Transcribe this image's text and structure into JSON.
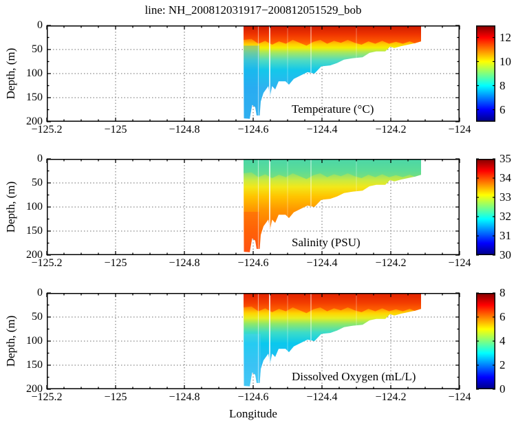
{
  "title": "line: NH_200812031917−200812051529_bob",
  "axes": {
    "xlabel": "Longitude",
    "ylabel": "Depth, (m)",
    "xlim": [
      -125.2,
      -124.0
    ],
    "ylim": [
      0,
      200
    ],
    "xtick_values": [
      -125.2,
      -125,
      -124.8,
      -124.6,
      -124.4,
      -124.2,
      -124
    ],
    "xtick_labels": [
      "−125.2",
      "−125",
      "−124.8",
      "−124.6",
      "−124.4",
      "−124.2",
      "−124"
    ],
    "ytick_values": [
      0,
      50,
      100,
      150,
      200
    ],
    "ytick_labels": [
      "0",
      "50",
      "100",
      "150",
      "200"
    ],
    "x_minor_step": 0.05,
    "y_minor_step": 25,
    "grid": "dotted"
  },
  "colormap": {
    "name": "jet",
    "stops": [
      [
        0,
        "#000083"
      ],
      [
        0.125,
        "#0000ff"
      ],
      [
        0.375,
        "#00ffff"
      ],
      [
        0.625,
        "#ffff00"
      ],
      [
        0.875,
        "#ff0000"
      ],
      [
        1,
        "#800000"
      ]
    ]
  },
  "section": {
    "lon_min": -124.628,
    "lon_max": -124.112,
    "max_depth_m": 196,
    "seafloor": [
      [
        -124.627,
        193
      ],
      [
        -124.61,
        194
      ],
      [
        -124.603,
        165
      ],
      [
        -124.594,
        170
      ],
      [
        -124.59,
        187
      ],
      [
        -124.581,
        187
      ],
      [
        -124.578,
        158
      ],
      [
        -124.57,
        140
      ],
      [
        -124.556,
        126
      ],
      [
        -124.551,
        147
      ],
      [
        -124.545,
        126
      ],
      [
        -124.536,
        133
      ],
      [
        -124.526,
        116
      ],
      [
        -124.506,
        116
      ],
      [
        -124.496,
        123
      ],
      [
        -124.482,
        111
      ],
      [
        -124.462,
        104
      ],
      [
        -124.442,
        97
      ],
      [
        -124.422,
        100
      ],
      [
        -124.402,
        85
      ],
      [
        -124.376,
        83
      ],
      [
        -124.356,
        78
      ],
      [
        -124.336,
        71
      ],
      [
        -124.31,
        68
      ],
      [
        -124.282,
        66
      ],
      [
        -124.262,
        57
      ],
      [
        -124.242,
        54
      ],
      [
        -124.216,
        54
      ],
      [
        -124.202,
        44
      ],
      [
        -124.19,
        47
      ],
      [
        -124.17,
        43
      ],
      [
        -124.15,
        40
      ],
      [
        -124.13,
        37
      ],
      [
        -124.112,
        33
      ]
    ],
    "mixed_layer": [
      [
        -124.628,
        30
      ],
      [
        -124.605,
        28
      ],
      [
        -124.585,
        38
      ],
      [
        -124.565,
        32
      ],
      [
        -124.545,
        40
      ],
      [
        -124.525,
        33
      ],
      [
        -124.505,
        38
      ],
      [
        -124.485,
        30
      ],
      [
        -124.465,
        36
      ],
      [
        -124.445,
        42
      ],
      [
        -124.425,
        34
      ],
      [
        -124.405,
        30
      ],
      [
        -124.385,
        38
      ],
      [
        -124.365,
        32
      ],
      [
        -124.345,
        36
      ],
      [
        -124.325,
        30
      ],
      [
        -124.305,
        36
      ],
      [
        -124.285,
        40
      ],
      [
        -124.265,
        33
      ],
      [
        -124.245,
        38
      ],
      [
        -124.225,
        32
      ],
      [
        -124.205,
        38
      ],
      [
        -124.185,
        34
      ],
      [
        -124.165,
        38
      ],
      [
        -124.145,
        33
      ],
      [
        -124.128,
        38
      ],
      [
        -124.112,
        40
      ]
    ],
    "streaks": [
      {
        "lon": -124.585,
        "width": 1.2,
        "opacity": 0.5
      },
      {
        "lon": -124.552,
        "width": 1.8,
        "opacity": 0.85
      },
      {
        "lon": -124.5,
        "width": 1.0,
        "opacity": 0.35
      },
      {
        "lon": -124.432,
        "width": 1.4,
        "opacity": 0.55
      },
      {
        "lon": -124.3,
        "width": 1.0,
        "opacity": 0.35
      }
    ]
  },
  "chart_data": [
    {
      "type": "heatmap",
      "panel": "temperature",
      "label": "Temperature (°C)",
      "surface_value_c": 12,
      "deep_value_c": 6.5,
      "colorbar": {
        "min": 5,
        "max": 13,
        "tick_values": [
          12,
          10,
          8,
          6
        ],
        "tick_labels": [
          "12",
          "10",
          "8",
          "6"
        ]
      },
      "surface_gradient": [
        [
          0,
          "#cc1a00"
        ],
        [
          18,
          "#ee3300"
        ],
        [
          34,
          "#ff5a00"
        ],
        [
          46,
          "#ff9100"
        ]
      ],
      "depth_gradient": [
        [
          0,
          "#ee3300"
        ],
        [
          26,
          "#ff6a00"
        ],
        [
          38,
          "#ffc800"
        ],
        [
          46,
          "#f5ee00"
        ],
        [
          56,
          "#a8e85c"
        ],
        [
          72,
          "#52dcc0"
        ],
        [
          92,
          "#14c8ea"
        ],
        [
          130,
          "#2eb2f0"
        ],
        [
          200,
          "#3db6ec"
        ]
      ],
      "deep_patch": {
        "lon0": -124.628,
        "lon1": -124.582,
        "d0": 42,
        "d1": 196,
        "color": "#21a4f2",
        "opacity": 0.42
      }
    },
    {
      "type": "heatmap",
      "panel": "salinity",
      "label": "Salinity (PSU)",
      "surface_value_psu": 32.3,
      "deep_value_psu": 34.4,
      "colorbar": {
        "min": 30,
        "max": 35,
        "tick_values": [
          35,
          34,
          33,
          32,
          31,
          30
        ],
        "tick_labels": [
          "35",
          "34",
          "33",
          "32",
          "31",
          "30"
        ]
      },
      "surface_gradient": [
        [
          0,
          "#4ad6a8"
        ],
        [
          25,
          "#5cdc96"
        ],
        [
          46,
          "#86e070"
        ]
      ],
      "depth_gradient": [
        [
          0,
          "#55d9a0"
        ],
        [
          30,
          "#8ce070"
        ],
        [
          44,
          "#c8ea42"
        ],
        [
          58,
          "#f2e81a"
        ],
        [
          78,
          "#ffc400"
        ],
        [
          105,
          "#ff9800"
        ],
        [
          145,
          "#ff7300"
        ],
        [
          200,
          "#ff5518"
        ]
      ],
      "deep_patch": {
        "lon0": -124.628,
        "lon1": -124.582,
        "d0": 110,
        "d1": 196,
        "color": "#ff4a10",
        "opacity": 0.38
      }
    },
    {
      "type": "heatmap",
      "panel": "dissolved-oxygen",
      "label": "Dissolved Oxygen (mL/L)",
      "surface_value_ml_l": 6.8,
      "deep_value_ml_l": 2.4,
      "colorbar": {
        "min": 0,
        "max": 8,
        "tick_values": [
          8,
          6,
          4,
          2,
          0
        ],
        "tick_labels": [
          "8",
          "6",
          "4",
          "2",
          "0"
        ]
      },
      "surface_gradient": [
        [
          0,
          "#e02000"
        ],
        [
          20,
          "#f23c00"
        ],
        [
          36,
          "#ff6400"
        ],
        [
          46,
          "#ff9800"
        ]
      ],
      "depth_gradient": [
        [
          0,
          "#f03000"
        ],
        [
          28,
          "#ff7a00"
        ],
        [
          42,
          "#ffd400"
        ],
        [
          52,
          "#e8ee20"
        ],
        [
          64,
          "#90e868"
        ],
        [
          82,
          "#3cdcc8"
        ],
        [
          105,
          "#0ac8ee"
        ],
        [
          150,
          "#2cbaf2"
        ],
        [
          200,
          "#40c4f4"
        ]
      ],
      "deep_patch": {
        "lon0": -124.628,
        "lon1": -124.578,
        "d0": 85,
        "d1": 196,
        "color": "#4fd0f8",
        "opacity": 0.4
      }
    }
  ]
}
